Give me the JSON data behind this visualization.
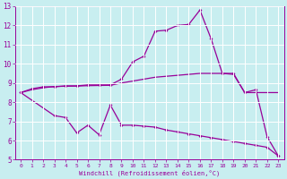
{
  "xlabel": "Windchill (Refroidissement éolien,°C)",
  "background_color": "#c8eef0",
  "line_color": "#990099",
  "grid_color": "#ffffff",
  "xlim": [
    -0.5,
    23.5
  ],
  "ylim": [
    5,
    13
  ],
  "yticks": [
    5,
    6,
    7,
    8,
    9,
    10,
    11,
    12,
    13
  ],
  "xticks": [
    0,
    1,
    2,
    3,
    4,
    5,
    6,
    7,
    8,
    9,
    10,
    11,
    12,
    13,
    14,
    15,
    16,
    17,
    18,
    19,
    20,
    21,
    22,
    23
  ],
  "line1_x": [
    0,
    1,
    2,
    3,
    4,
    5,
    6,
    7,
    8,
    9,
    10,
    11,
    12,
    13,
    14,
    15,
    16,
    17,
    18,
    19,
    20,
    21,
    22,
    23
  ],
  "line1_y": [
    8.5,
    8.7,
    8.8,
    8.8,
    8.85,
    8.85,
    8.9,
    8.9,
    8.9,
    9.2,
    10.1,
    10.4,
    11.7,
    11.75,
    12.0,
    12.05,
    12.8,
    11.3,
    9.5,
    9.5,
    8.5,
    8.65,
    6.2,
    5.2
  ],
  "line2_x": [
    0,
    1,
    2,
    3,
    4,
    5,
    6,
    7,
    8,
    9,
    10,
    11,
    12,
    13,
    14,
    15,
    16,
    17,
    18,
    19,
    20,
    21,
    22,
    23
  ],
  "line2_y": [
    8.5,
    8.65,
    8.75,
    8.82,
    8.83,
    8.84,
    8.86,
    8.87,
    8.88,
    9.0,
    9.1,
    9.2,
    9.3,
    9.35,
    9.4,
    9.45,
    9.5,
    9.5,
    9.5,
    9.45,
    8.5,
    8.5,
    8.5,
    8.5
  ],
  "line3_x": [
    0,
    3,
    4,
    5,
    6,
    7,
    8,
    9,
    10,
    11,
    12,
    13,
    14,
    15,
    16,
    17,
    18,
    19,
    20,
    21,
    22,
    23
  ],
  "line3_y": [
    8.5,
    7.3,
    7.2,
    6.4,
    6.8,
    6.3,
    7.85,
    6.8,
    6.8,
    6.75,
    6.7,
    6.55,
    6.45,
    6.35,
    6.25,
    6.15,
    6.05,
    5.95,
    5.85,
    5.75,
    5.65,
    5.2
  ]
}
